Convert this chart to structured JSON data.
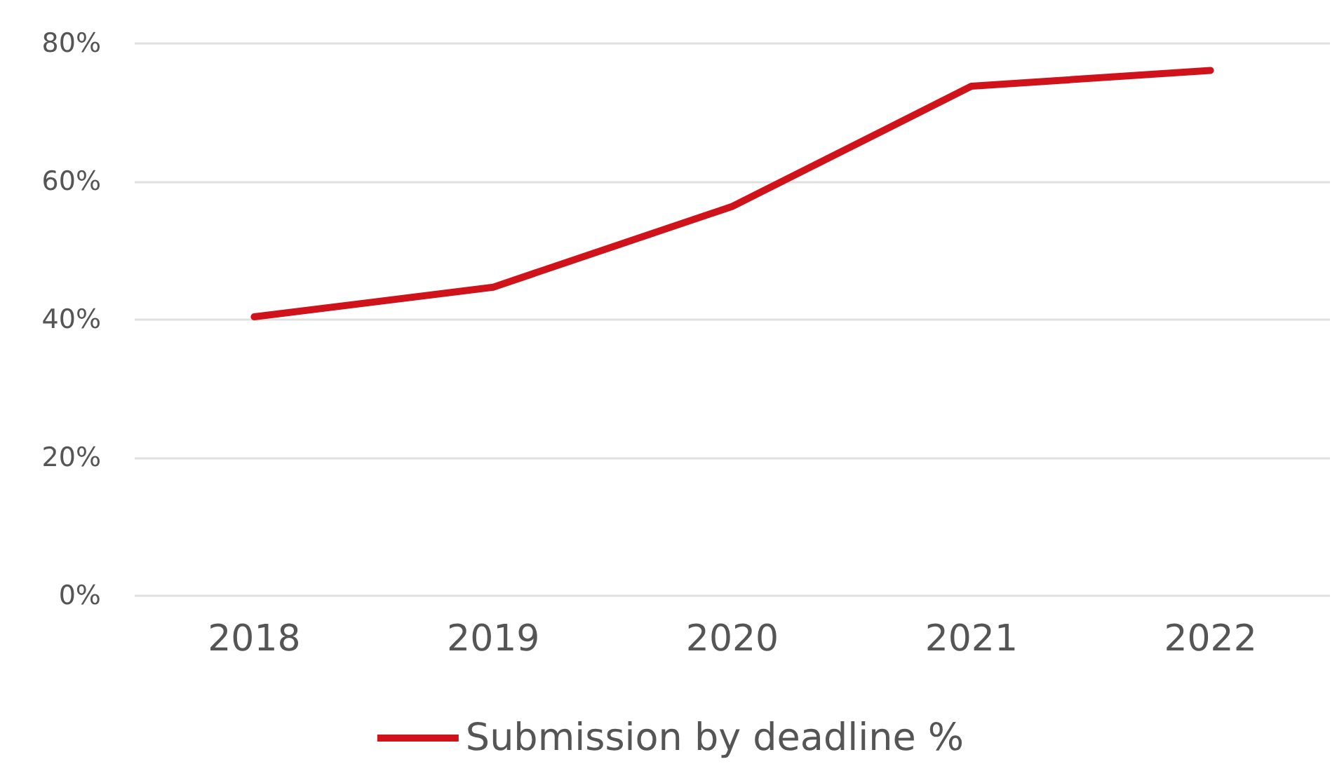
{
  "chart_data": {
    "type": "line",
    "categories": [
      "2018",
      "2019",
      "2020",
      "2021",
      "2022"
    ],
    "series": [
      {
        "name": "Submission by deadline %",
        "color": "#d0121b",
        "values": [
          40.4,
          44.7,
          56.4,
          73.8,
          76.1
        ]
      }
    ],
    "ylim": [
      0,
      80
    ],
    "yticks": [
      {
        "value": 0,
        "label": "0%"
      },
      {
        "value": 20,
        "label": "20%"
      },
      {
        "value": 40,
        "label": "40%"
      },
      {
        "value": 60,
        "label": "60%"
      },
      {
        "value": 80,
        "label": "80%"
      }
    ],
    "grid": "y",
    "legend": "bottom",
    "marker": "none",
    "line_style": "solid"
  }
}
